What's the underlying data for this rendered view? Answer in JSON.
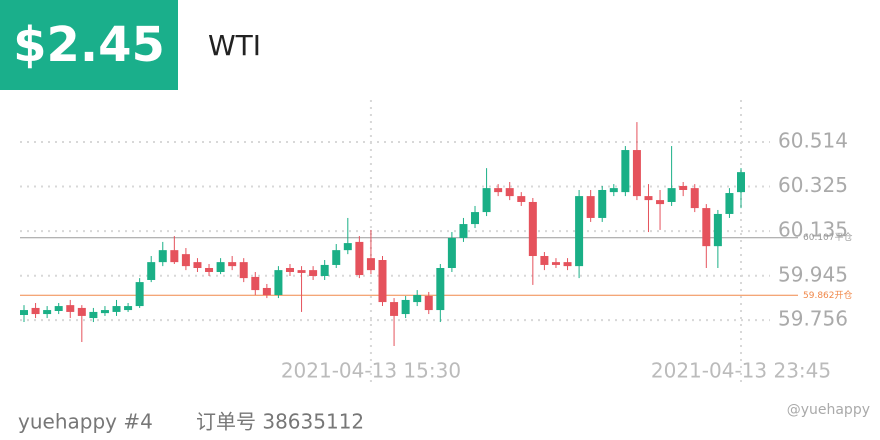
{
  "header": {
    "profit": "$2.45",
    "symbol": "WTI"
  },
  "footer": {
    "user": "yuehappy #4",
    "order": "订单号 38635112",
    "watermark": "@yuehappy"
  },
  "chart_data": {
    "type": "candlestick",
    "up_color": "#1aaf86",
    "down_color": "#e5525c",
    "ylim": [
      59.629,
      60.693
    ],
    "yticks": [
      59.756,
      59.945,
      60.135,
      60.325,
      60.514
    ],
    "grid": true,
    "categories": [
      null,
      null,
      null,
      null,
      null,
      null,
      null,
      null,
      null,
      null,
      null,
      null,
      null,
      null,
      null,
      null,
      null,
      null,
      null,
      null,
      null,
      null,
      null,
      null,
      null,
      null,
      null,
      null,
      null,
      null,
      "2021-04-13 15:30",
      null,
      null,
      null,
      null,
      null,
      null,
      null,
      null,
      null,
      null,
      null,
      null,
      null,
      null,
      null,
      null,
      null,
      null,
      null,
      null,
      null,
      null,
      null,
      null,
      null,
      null,
      null,
      null,
      null,
      null,
      null,
      "2021-04-13 23:45"
    ],
    "open": [
      59.778,
      59.808,
      59.782,
      59.795,
      59.82,
      59.808,
      59.765,
      59.786,
      59.791,
      59.799,
      59.816,
      59.927,
      60.003,
      60.054,
      60.037,
      60.003,
      59.978,
      59.961,
      60.003,
      60.003,
      59.94,
      59.893,
      59.863,
      59.978,
      59.969,
      59.969,
      59.944,
      59.991,
      60.054,
      60.089,
      60.02,
      60.012,
      59.833,
      59.782,
      59.833,
      59.859,
      59.799,
      59.978,
      60.106,
      60.165,
      60.216,
      60.318,
      60.318,
      60.284,
      60.259,
      60.029,
      60.003,
      60.003,
      59.986,
      60.284,
      60.191,
      60.301,
      60.301,
      60.48,
      60.284,
      60.267,
      60.259,
      60.327,
      60.318,
      60.233,
      60.071,
      60.208,
      60.301
    ],
    "high": [
      59.82,
      59.829,
      59.816,
      59.829,
      59.842,
      59.82,
      59.808,
      59.816,
      59.842,
      59.829,
      59.935,
      60.029,
      60.089,
      60.114,
      60.063,
      60.02,
      59.995,
      60.02,
      60.029,
      60.02,
      59.961,
      59.91,
      59.986,
      59.995,
      59.986,
      59.986,
      60.012,
      60.08,
      60.191,
      60.114,
      60.14,
      60.029,
      59.85,
      59.859,
      59.884,
      59.876,
      59.995,
      60.131,
      60.191,
      60.242,
      60.403,
      60.335,
      60.344,
      60.301,
      60.276,
      60.046,
      60.02,
      60.02,
      60.31,
      60.31,
      60.327,
      60.335,
      60.497,
      60.599,
      60.335,
      60.31,
      60.497,
      60.344,
      60.335,
      60.25,
      60.225,
      60.318,
      60.403
    ],
    "low": [
      59.748,
      59.765,
      59.765,
      59.782,
      59.765,
      59.663,
      59.748,
      59.774,
      59.774,
      59.791,
      59.808,
      59.918,
      59.986,
      59.995,
      59.969,
      59.961,
      59.944,
      59.952,
      59.969,
      59.918,
      59.863,
      59.85,
      59.85,
      59.944,
      59.791,
      59.927,
      59.927,
      59.978,
      60.037,
      59.935,
      59.952,
      59.816,
      59.646,
      59.765,
      59.816,
      59.782,
      59.748,
      59.961,
      60.089,
      60.148,
      60.199,
      60.284,
      60.267,
      60.242,
      59.906,
      59.969,
      59.978,
      59.969,
      59.935,
      60.174,
      60.174,
      60.284,
      60.284,
      60.267,
      60.131,
      60.14,
      60.242,
      60.284,
      60.216,
      59.978,
      59.978,
      60.191,
      60.233
    ],
    "close": [
      59.799,
      59.782,
      59.799,
      59.816,
      59.791,
      59.774,
      59.791,
      59.799,
      59.816,
      59.816,
      59.918,
      60.003,
      60.054,
      60.003,
      59.986,
      59.978,
      59.961,
      60.003,
      59.986,
      59.935,
      59.884,
      59.863,
      59.969,
      59.961,
      59.957,
      59.944,
      59.991,
      60.054,
      60.084,
      59.948,
      59.969,
      59.833,
      59.774,
      59.842,
      59.863,
      59.799,
      59.978,
      60.106,
      60.165,
      60.216,
      60.318,
      60.301,
      60.284,
      60.259,
      60.029,
      59.991,
      59.991,
      59.986,
      60.284,
      60.191,
      60.31,
      60.318,
      60.48,
      60.284,
      60.267,
      60.25,
      60.318,
      60.31,
      60.233,
      60.071,
      60.208,
      60.297,
      60.386
    ],
    "ref_lines": [
      {
        "value": 60.107,
        "label": "60.107平仓",
        "color": "#9a9a9a"
      },
      {
        "value": 59.862,
        "label": "59.862开仓",
        "color": "#f0884a"
      }
    ]
  }
}
